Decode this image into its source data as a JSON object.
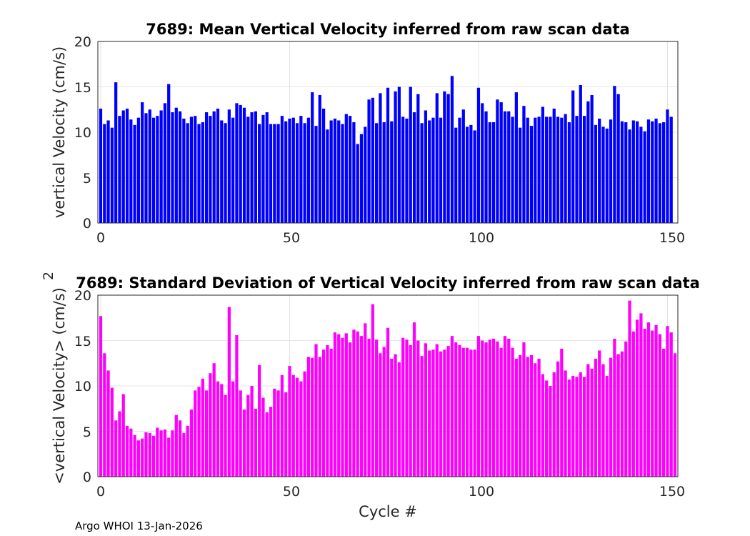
{
  "chart_data": [
    {
      "type": "bar",
      "title": "7689: Mean Vertical Velocity inferred from raw scan data",
      "xlabel": "",
      "ylabel": "vertical Velocity (cm/s)",
      "xlim": [
        0,
        152
      ],
      "ylim": [
        0,
        20
      ],
      "xticks": [
        "0",
        "50",
        "100",
        "150"
      ],
      "yticks": [
        "0",
        "5",
        "10",
        "15",
        "20"
      ],
      "grid": true,
      "color": "#0000ff",
      "x_start": 0,
      "values": [
        12.6,
        10.9,
        11.3,
        10.5,
        15.5,
        11.8,
        12.4,
        12.6,
        11.4,
        10.8,
        11.6,
        13.3,
        12.1,
        12.5,
        11.6,
        11.8,
        12.4,
        13.2,
        15.3,
        12.2,
        12.7,
        12.3,
        11.5,
        11,
        11.7,
        11.8,
        10.9,
        11.1,
        12.2,
        11.8,
        12.3,
        12.6,
        11.3,
        11,
        12.5,
        11.6,
        13.2,
        13,
        12.7,
        11.7,
        12.2,
        12.3,
        10.9,
        11.9,
        12.2,
        10.9,
        10.9,
        10.9,
        11.8,
        11.2,
        11.5,
        11.6,
        11,
        11.8,
        11,
        11.6,
        14.4,
        10.7,
        14.1,
        12.6,
        10.3,
        11.3,
        11.5,
        11.3,
        10.9,
        12,
        11.8,
        11.1,
        8.7,
        9.8,
        10.6,
        13.6,
        13.8,
        11,
        14.3,
        11.1,
        14.9,
        11.2,
        14.5,
        15,
        11.7,
        11.5,
        15,
        12.2,
        14.2,
        11,
        12.4,
        11.3,
        11.6,
        14.3,
        11.6,
        14.5,
        14.2,
        16.2,
        10.5,
        11.6,
        12.5,
        10.6,
        10.8,
        10.2,
        14.9,
        13.2,
        12.3,
        11.1,
        11.1,
        13.6,
        13.3,
        12.3,
        12.3,
        11.7,
        14.4,
        10.5,
        12.9,
        11.6,
        10.7,
        11.6,
        11.7,
        12.8,
        11.7,
        11.7,
        12.6,
        11.7,
        11.6,
        12,
        11.1,
        14.6,
        11.8,
        15.2,
        11.8,
        13.4,
        14.1,
        10.8,
        11.5,
        10.6,
        10.4,
        11.4,
        15.1,
        14.2,
        11.2,
        11.1,
        10.3,
        11.3,
        11.2,
        10.6,
        10.1,
        11.4,
        11.2,
        11.5,
        11,
        11.1,
        12.5,
        11.7
      ]
    },
    {
      "type": "bar",
      "title": "7689: Standard Deviation of Vertical Velocity inferred from raw scan data",
      "xlabel": "Cycle #",
      "ylabel": "<vertical Velocity> (cm/s)",
      "superscript": "2",
      "xlim": [
        0,
        152
      ],
      "ylim": [
        0,
        20
      ],
      "xticks": [
        "0",
        "50",
        "100",
        "150"
      ],
      "yticks": [
        "0",
        "5",
        "10",
        "15",
        "20"
      ],
      "grid": true,
      "color": "#ff00ff",
      "x_start": 0,
      "values": [
        17.7,
        13.6,
        11.7,
        9.8,
        6.2,
        7.2,
        9.1,
        5.6,
        5.3,
        4.6,
        4.0,
        4.2,
        4.9,
        4.8,
        4.5,
        5.4,
        5.1,
        5.2,
        4.3,
        5.1,
        6.8,
        6.2,
        4.8,
        5.6,
        7.4,
        9.5,
        9.9,
        10.8,
        9.5,
        11.4,
        12.5,
        10.5,
        10.2,
        9.0,
        18.7,
        10.5,
        15.6,
        9.5,
        7.4,
        9.0,
        10.0,
        7.5,
        12.3,
        8.7,
        7.1,
        7.7,
        9.7,
        9.5,
        11.2,
        9.3,
        12.2,
        11.2,
        10.9,
        10.5,
        11.6,
        13.2,
        13.1,
        14.6,
        13.2,
        14.0,
        14.5,
        14.1,
        15.9,
        15.7,
        15.3,
        15.8,
        14.8,
        16.2,
        16.0,
        15.5,
        16.9,
        15.2,
        19.0,
        15.1,
        13.6,
        14.3,
        16.4,
        13.0,
        13.5,
        12.6,
        15.3,
        15.1,
        14.5,
        17.0,
        15.0,
        13.3,
        14.7,
        13.9,
        14.0,
        14.6,
        13.8,
        14.0,
        14.4,
        15.5,
        14.8,
        14.5,
        14.2,
        14.2,
        14.0,
        14.0,
        15.5,
        15.0,
        14.8,
        15.1,
        15.2,
        14.9,
        14.2,
        15.5,
        15.2,
        14.2,
        13.0,
        13.4,
        14.8,
        13.2,
        13.4,
        12.5,
        13.0,
        11.3,
        10.6,
        10.0,
        11.5,
        12.7,
        14.1,
        11.7,
        10.7,
        11.1,
        11.0,
        11.5,
        11.0,
        12.4,
        11.9,
        13.0,
        13.9,
        12.4,
        11.1,
        13.1,
        15.2,
        13.5,
        13.8,
        14.9,
        19.4,
        16.0,
        17.3,
        18.0,
        16.3,
        17.0,
        16.1,
        16.7,
        15.7,
        14.1,
        16.6,
        15.9,
        13.6
      ]
    }
  ],
  "footer": "Argo WHOI 13-Jan-2026"
}
